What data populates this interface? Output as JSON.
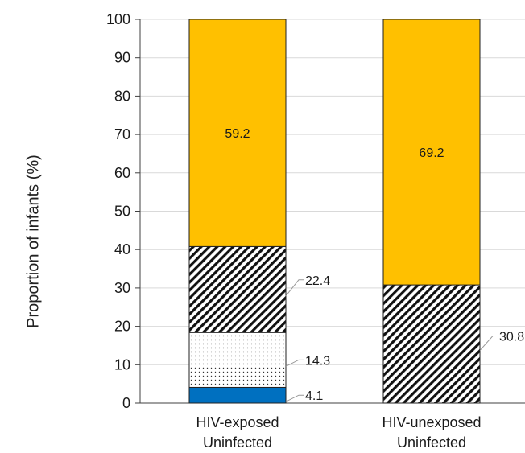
{
  "chart_data": {
    "type": "bar",
    "stacked": true,
    "ylabel": "Proportion of infants (%)",
    "ylim": [
      0,
      100
    ],
    "yticks": [
      0,
      10,
      20,
      30,
      40,
      50,
      60,
      70,
      80,
      90,
      100
    ],
    "grid": true,
    "categories": [
      [
        "HIV-exposed",
        "Uninfected"
      ],
      [
        "HIV-unexposed",
        "Uninfected"
      ]
    ],
    "series": [
      {
        "values": [
          4.1,
          0
        ],
        "fill": "solid",
        "color": "#0070c0"
      },
      {
        "values": [
          14.3,
          0
        ],
        "fill": "dots",
        "color": "#ffffff"
      },
      {
        "values": [
          22.4,
          30.8
        ],
        "fill": "hatch",
        "color": "#ffffff"
      },
      {
        "values": [
          59.2,
          69.2
        ],
        "fill": "solid",
        "color": "#ffc000"
      }
    ],
    "data_labels": [
      [
        "4.1",
        "14.3",
        "22.4",
        "59.2"
      ],
      [
        "",
        "",
        "30.8",
        "69.2"
      ]
    ]
  }
}
